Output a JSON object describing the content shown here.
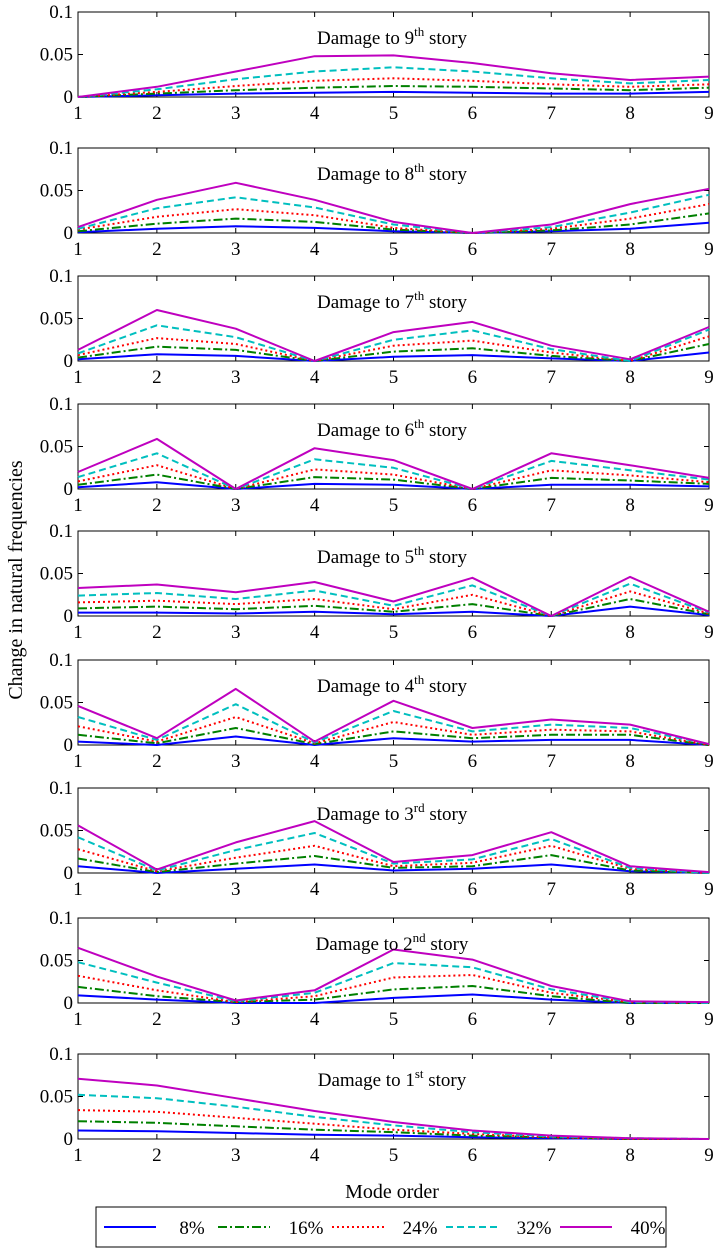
{
  "chart_data": {
    "type": "line",
    "ylabel": "Change in natural frequencies",
    "xlabel": "Mode order",
    "x": [
      1,
      2,
      3,
      4,
      5,
      6,
      7,
      8,
      9
    ],
    "ylim": [
      0,
      0.1
    ],
    "yticks": [
      "0",
      "0.05",
      "0.1"
    ],
    "xticks": [
      "1",
      "2",
      "3",
      "4",
      "5",
      "6",
      "7",
      "8",
      "9"
    ],
    "legend_position": "bottom",
    "series_styles": [
      {
        "name": "8%",
        "color": "#0000ff",
        "dash": "solid"
      },
      {
        "name": "16%",
        "color": "#008000",
        "dash": "dashdot"
      },
      {
        "name": "24%",
        "color": "#ff0000",
        "dash": "dotted"
      },
      {
        "name": "32%",
        "color": "#00bfbf",
        "dash": "dashed"
      },
      {
        "name": "40%",
        "color": "#bf00bf",
        "dash": "solid"
      }
    ],
    "panels": [
      {
        "title": "Damage to 9",
        "title_sup": "th",
        "title_tail": " story",
        "series": [
          {
            "name": "8%",
            "values": [
              0,
              0.002,
              0.004,
              0.005,
              0.006,
              0.005,
              0.004,
              0.004,
              0.006
            ]
          },
          {
            "name": "16%",
            "values": [
              0,
              0.004,
              0.008,
              0.011,
              0.013,
              0.012,
              0.01,
              0.008,
              0.011
            ]
          },
          {
            "name": "24%",
            "values": [
              0,
              0.006,
              0.013,
              0.019,
              0.022,
              0.019,
              0.015,
              0.012,
              0.015
            ]
          },
          {
            "name": "32%",
            "values": [
              0,
              0.009,
              0.021,
              0.03,
              0.035,
              0.03,
              0.022,
              0.016,
              0.02
            ]
          },
          {
            "name": "40%",
            "values": [
              0,
              0.012,
              0.03,
              0.048,
              0.049,
              0.04,
              0.028,
              0.02,
              0.024
            ]
          }
        ]
      },
      {
        "title": "Damage to 8",
        "title_sup": "th",
        "title_tail": " story",
        "series": [
          {
            "name": "8%",
            "values": [
              0.001,
              0.005,
              0.008,
              0.006,
              0.002,
              0,
              0.002,
              0.005,
              0.012
            ]
          },
          {
            "name": "16%",
            "values": [
              0.002,
              0.011,
              0.017,
              0.013,
              0.004,
              0,
              0.003,
              0.01,
              0.023
            ]
          },
          {
            "name": "24%",
            "values": [
              0.004,
              0.019,
              0.028,
              0.021,
              0.006,
              0,
              0.005,
              0.017,
              0.034
            ]
          },
          {
            "name": "32%",
            "values": [
              0.005,
              0.029,
              0.042,
              0.03,
              0.01,
              0,
              0.007,
              0.024,
              0.045
            ]
          },
          {
            "name": "40%",
            "values": [
              0.007,
              0.039,
              0.059,
              0.039,
              0.013,
              0,
              0.01,
              0.034,
              0.052
            ]
          }
        ]
      },
      {
        "title": "Damage to 7",
        "title_sup": "th",
        "title_tail": " story",
        "series": [
          {
            "name": "8%",
            "values": [
              0.002,
              0.008,
              0.006,
              0,
              0.005,
              0.007,
              0.003,
              0,
              0.01
            ]
          },
          {
            "name": "16%",
            "values": [
              0.004,
              0.017,
              0.013,
              0,
              0.011,
              0.015,
              0.006,
              0,
              0.02
            ]
          },
          {
            "name": "24%",
            "values": [
              0.007,
              0.027,
              0.02,
              0,
              0.018,
              0.024,
              0.01,
              0,
              0.029
            ]
          },
          {
            "name": "32%",
            "values": [
              0.009,
              0.042,
              0.028,
              0,
              0.025,
              0.036,
              0.014,
              0,
              0.037
            ]
          },
          {
            "name": "40%",
            "values": [
              0.013,
              0.06,
              0.038,
              0,
              0.034,
              0.046,
              0.018,
              0.002,
              0.04
            ]
          }
        ]
      },
      {
        "title": "Damage to 6",
        "title_sup": "th",
        "title_tail": " story",
        "series": [
          {
            "name": "8%",
            "values": [
              0.002,
              0.008,
              0,
              0.006,
              0.005,
              0,
              0.005,
              0.005,
              0.003
            ]
          },
          {
            "name": "16%",
            "values": [
              0.005,
              0.017,
              0,
              0.014,
              0.011,
              0,
              0.013,
              0.01,
              0.006
            ]
          },
          {
            "name": "24%",
            "values": [
              0.009,
              0.028,
              0,
              0.023,
              0.017,
              0,
              0.022,
              0.016,
              0.008
            ]
          },
          {
            "name": "32%",
            "values": [
              0.014,
              0.042,
              0,
              0.035,
              0.025,
              0,
              0.033,
              0.022,
              0.011
            ]
          },
          {
            "name": "40%",
            "values": [
              0.02,
              0.059,
              0,
              0.048,
              0.034,
              0,
              0.042,
              0.028,
              0.013
            ]
          }
        ]
      },
      {
        "title": "Damage to 5",
        "title_sup": "th",
        "title_tail": " story",
        "series": [
          {
            "name": "8%",
            "values": [
              0.004,
              0.004,
              0.003,
              0.005,
              0.002,
              0.005,
              0,
              0.011,
              0.001
            ]
          },
          {
            "name": "16%",
            "values": [
              0.009,
              0.011,
              0.008,
              0.012,
              0.005,
              0.014,
              0,
              0.02,
              0.002
            ]
          },
          {
            "name": "24%",
            "values": [
              0.016,
              0.018,
              0.014,
              0.02,
              0.008,
              0.025,
              0,
              0.029,
              0.003
            ]
          },
          {
            "name": "32%",
            "values": [
              0.024,
              0.027,
              0.02,
              0.03,
              0.012,
              0.036,
              0,
              0.038,
              0.004
            ]
          },
          {
            "name": "40%",
            "values": [
              0.033,
              0.037,
              0.028,
              0.04,
              0.017,
              0.045,
              0,
              0.046,
              0.005
            ]
          }
        ]
      },
      {
        "title": "Damage to 4",
        "title_sup": "th",
        "title_tail": " story",
        "series": [
          {
            "name": "8%",
            "values": [
              0.004,
              0,
              0.01,
              0,
              0.008,
              0.004,
              0.006,
              0.006,
              0
            ]
          },
          {
            "name": "16%",
            "values": [
              0.012,
              0.002,
              0.02,
              0.001,
              0.016,
              0.008,
              0.012,
              0.012,
              0
            ]
          },
          {
            "name": "24%",
            "values": [
              0.022,
              0.004,
              0.033,
              0.002,
              0.027,
              0.012,
              0.018,
              0.016,
              0
            ]
          },
          {
            "name": "32%",
            "values": [
              0.033,
              0.006,
              0.048,
              0.003,
              0.04,
              0.016,
              0.024,
              0.02,
              0.001
            ]
          },
          {
            "name": "40%",
            "values": [
              0.046,
              0.008,
              0.066,
              0.004,
              0.052,
              0.02,
              0.03,
              0.024,
              0.001
            ]
          }
        ]
      },
      {
        "title": "Damage to 3",
        "title_sup": "rd",
        "title_tail": " story",
        "series": [
          {
            "name": "8%",
            "values": [
              0.008,
              0,
              0.005,
              0.01,
              0.003,
              0.005,
              0.01,
              0.002,
              0
            ]
          },
          {
            "name": "16%",
            "values": [
              0.017,
              0.001,
              0.011,
              0.02,
              0.006,
              0.008,
              0.021,
              0.003,
              0
            ]
          },
          {
            "name": "24%",
            "values": [
              0.028,
              0.002,
              0.018,
              0.032,
              0.008,
              0.012,
              0.032,
              0.005,
              0
            ]
          },
          {
            "name": "32%",
            "values": [
              0.042,
              0.003,
              0.027,
              0.047,
              0.011,
              0.016,
              0.04,
              0.006,
              0
            ]
          },
          {
            "name": "40%",
            "values": [
              0.056,
              0.004,
              0.036,
              0.061,
              0.013,
              0.021,
              0.048,
              0.008,
              0.001
            ]
          }
        ]
      },
      {
        "title": "Damage to 2",
        "title_sup": "nd",
        "title_tail": " story",
        "series": [
          {
            "name": "8%",
            "values": [
              0.009,
              0.004,
              0,
              0,
              0.006,
              0.01,
              0.004,
              0,
              0
            ]
          },
          {
            "name": "16%",
            "values": [
              0.019,
              0.008,
              0.001,
              0.004,
              0.016,
              0.02,
              0.008,
              0,
              0
            ]
          },
          {
            "name": "24%",
            "values": [
              0.032,
              0.015,
              0.001,
              0.008,
              0.03,
              0.033,
              0.012,
              0.001,
              0
            ]
          },
          {
            "name": "32%",
            "values": [
              0.048,
              0.024,
              0.002,
              0.012,
              0.047,
              0.042,
              0.016,
              0.001,
              0
            ]
          },
          {
            "name": "40%",
            "values": [
              0.065,
              0.031,
              0.003,
              0.015,
              0.063,
              0.051,
              0.02,
              0.002,
              0.001
            ]
          }
        ]
      },
      {
        "title": "Damage to 1",
        "title_sup": "st",
        "title_tail": " story",
        "series": [
          {
            "name": "8%",
            "values": [
              0.01,
              0.009,
              0.007,
              0.005,
              0.004,
              0.002,
              0.001,
              0,
              0
            ]
          },
          {
            "name": "16%",
            "values": [
              0.021,
              0.019,
              0.015,
              0.011,
              0.008,
              0.004,
              0.002,
              0,
              0
            ]
          },
          {
            "name": "24%",
            "values": [
              0.034,
              0.032,
              0.025,
              0.018,
              0.011,
              0.006,
              0.002,
              0,
              0
            ]
          },
          {
            "name": "32%",
            "values": [
              0.052,
              0.048,
              0.038,
              0.026,
              0.016,
              0.008,
              0.003,
              0.001,
              0
            ]
          },
          {
            "name": "40%",
            "values": [
              0.071,
              0.063,
              0.048,
              0.033,
              0.02,
              0.01,
              0.004,
              0.001,
              0
            ]
          }
        ]
      }
    ]
  }
}
